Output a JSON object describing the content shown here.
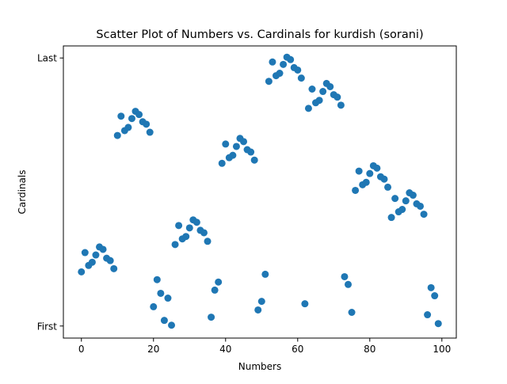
{
  "chart_data": {
    "type": "scatter",
    "title": "Scatter Plot of Numbers vs. Cardinals for kurdish (sorani)",
    "xlabel": "Numbers",
    "ylabel": "Cardinals",
    "xlim": [
      -5,
      104
    ],
    "ylim": [
      -0.045,
      1.045
    ],
    "x_ticks": [
      0,
      20,
      40,
      60,
      80,
      100
    ],
    "x_tick_labels": [
      "0",
      "20",
      "40",
      "60",
      "80",
      "100"
    ],
    "y_ticks": [
      0,
      1
    ],
    "y_tick_labels": [
      "First",
      "Last"
    ],
    "grid": false,
    "legend": "none",
    "color": "#1f77b4",
    "points": [
      {
        "x": 0,
        "y": 0.202
      },
      {
        "x": 1,
        "y": 0.274
      },
      {
        "x": 2,
        "y": 0.226
      },
      {
        "x": 3,
        "y": 0.238
      },
      {
        "x": 4,
        "y": 0.265
      },
      {
        "x": 5,
        "y": 0.295
      },
      {
        "x": 6,
        "y": 0.286
      },
      {
        "x": 7,
        "y": 0.253
      },
      {
        "x": 8,
        "y": 0.244
      },
      {
        "x": 9,
        "y": 0.214
      },
      {
        "x": 10,
        "y": 0.711
      },
      {
        "x": 11,
        "y": 0.783
      },
      {
        "x": 12,
        "y": 0.729
      },
      {
        "x": 13,
        "y": 0.741
      },
      {
        "x": 14,
        "y": 0.774
      },
      {
        "x": 15,
        "y": 0.801
      },
      {
        "x": 16,
        "y": 0.789
      },
      {
        "x": 17,
        "y": 0.762
      },
      {
        "x": 18,
        "y": 0.753
      },
      {
        "x": 19,
        "y": 0.723
      },
      {
        "x": 20,
        "y": 0.072
      },
      {
        "x": 21,
        "y": 0.173
      },
      {
        "x": 22,
        "y": 0.122
      },
      {
        "x": 23,
        "y": 0.021
      },
      {
        "x": 24,
        "y": 0.104
      },
      {
        "x": 25,
        "y": 0.003
      },
      {
        "x": 26,
        "y": 0.304
      },
      {
        "x": 27,
        "y": 0.375
      },
      {
        "x": 28,
        "y": 0.325
      },
      {
        "x": 29,
        "y": 0.334
      },
      {
        "x": 30,
        "y": 0.366
      },
      {
        "x": 31,
        "y": 0.396
      },
      {
        "x": 32,
        "y": 0.387
      },
      {
        "x": 33,
        "y": 0.357
      },
      {
        "x": 34,
        "y": 0.348
      },
      {
        "x": 35,
        "y": 0.316
      },
      {
        "x": 36,
        "y": 0.033
      },
      {
        "x": 37,
        "y": 0.134
      },
      {
        "x": 38,
        "y": 0.164
      },
      {
        "x": 39,
        "y": 0.607
      },
      {
        "x": 40,
        "y": 0.679
      },
      {
        "x": 41,
        "y": 0.628
      },
      {
        "x": 42,
        "y": 0.637
      },
      {
        "x": 43,
        "y": 0.67
      },
      {
        "x": 44,
        "y": 0.7
      },
      {
        "x": 45,
        "y": 0.688
      },
      {
        "x": 46,
        "y": 0.658
      },
      {
        "x": 47,
        "y": 0.649
      },
      {
        "x": 48,
        "y": 0.619
      },
      {
        "x": 49,
        "y": 0.06
      },
      {
        "x": 50,
        "y": 0.092
      },
      {
        "x": 51,
        "y": 0.193
      },
      {
        "x": 52,
        "y": 0.913
      },
      {
        "x": 53,
        "y": 0.985
      },
      {
        "x": 54,
        "y": 0.934
      },
      {
        "x": 55,
        "y": 0.943
      },
      {
        "x": 56,
        "y": 0.976
      },
      {
        "x": 57,
        "y": 1.003
      },
      {
        "x": 58,
        "y": 0.994
      },
      {
        "x": 59,
        "y": 0.964
      },
      {
        "x": 60,
        "y": 0.955
      },
      {
        "x": 61,
        "y": 0.925
      },
      {
        "x": 62,
        "y": 0.083
      },
      {
        "x": 63,
        "y": 0.812
      },
      {
        "x": 64,
        "y": 0.884
      },
      {
        "x": 65,
        "y": 0.833
      },
      {
        "x": 66,
        "y": 0.842
      },
      {
        "x": 67,
        "y": 0.875
      },
      {
        "x": 68,
        "y": 0.905
      },
      {
        "x": 69,
        "y": 0.893
      },
      {
        "x": 70,
        "y": 0.863
      },
      {
        "x": 71,
        "y": 0.854
      },
      {
        "x": 72,
        "y": 0.824
      },
      {
        "x": 73,
        "y": 0.184
      },
      {
        "x": 74,
        "y": 0.155
      },
      {
        "x": 75,
        "y": 0.051
      },
      {
        "x": 76,
        "y": 0.506
      },
      {
        "x": 77,
        "y": 0.578
      },
      {
        "x": 78,
        "y": 0.527
      },
      {
        "x": 79,
        "y": 0.536
      },
      {
        "x": 80,
        "y": 0.569
      },
      {
        "x": 81,
        "y": 0.598
      },
      {
        "x": 82,
        "y": 0.589
      },
      {
        "x": 83,
        "y": 0.557
      },
      {
        "x": 84,
        "y": 0.548
      },
      {
        "x": 85,
        "y": 0.518
      },
      {
        "x": 86,
        "y": 0.405
      },
      {
        "x": 87,
        "y": 0.476
      },
      {
        "x": 88,
        "y": 0.426
      },
      {
        "x": 89,
        "y": 0.435
      },
      {
        "x": 90,
        "y": 0.467
      },
      {
        "x": 91,
        "y": 0.497
      },
      {
        "x": 92,
        "y": 0.488
      },
      {
        "x": 93,
        "y": 0.456
      },
      {
        "x": 94,
        "y": 0.447
      },
      {
        "x": 95,
        "y": 0.417
      },
      {
        "x": 96,
        "y": 0.042
      },
      {
        "x": 97,
        "y": 0.143
      },
      {
        "x": 98,
        "y": 0.113
      },
      {
        "x": 99,
        "y": 0.009
      }
    ]
  }
}
